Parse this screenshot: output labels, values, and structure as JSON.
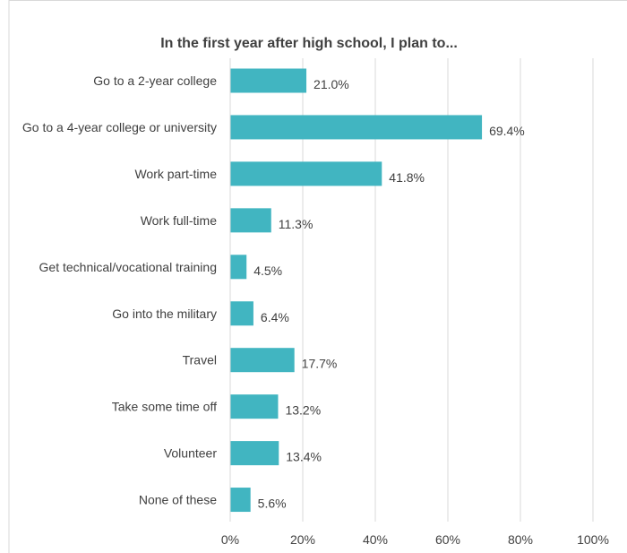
{
  "chart_data": {
    "type": "bar",
    "orientation": "horizontal",
    "title": "In the first year after high school, I plan to...",
    "xlabel": "",
    "ylabel": "",
    "categories": [
      "Go to a 2-year college",
      "Go to a 4-year college or university",
      "Work part-time",
      "Work full-time",
      "Get technical/vocational training",
      "Go into the military",
      "Travel",
      "Take some time off",
      "Volunteer",
      "None of these"
    ],
    "values": [
      21.0,
      69.4,
      41.8,
      11.3,
      4.5,
      6.4,
      17.7,
      13.2,
      13.4,
      5.6
    ],
    "value_labels": [
      "21.0%",
      "69.4%",
      "41.8%",
      "11.3%",
      "4.5%",
      "6.4%",
      "17.7%",
      "13.2%",
      "13.4%",
      "5.6%"
    ],
    "xlim": [
      0,
      100
    ],
    "x_ticks": [
      0,
      20,
      40,
      60,
      80,
      100
    ],
    "x_tick_labels": [
      "0%",
      "20%",
      "40%",
      "60%",
      "80%",
      "100%"
    ],
    "grid": "vertical",
    "legend": "none",
    "colors": {
      "bar": "#41B5C1",
      "grid": "#D9D9D9",
      "text": "#404040",
      "title": "#404040"
    }
  }
}
